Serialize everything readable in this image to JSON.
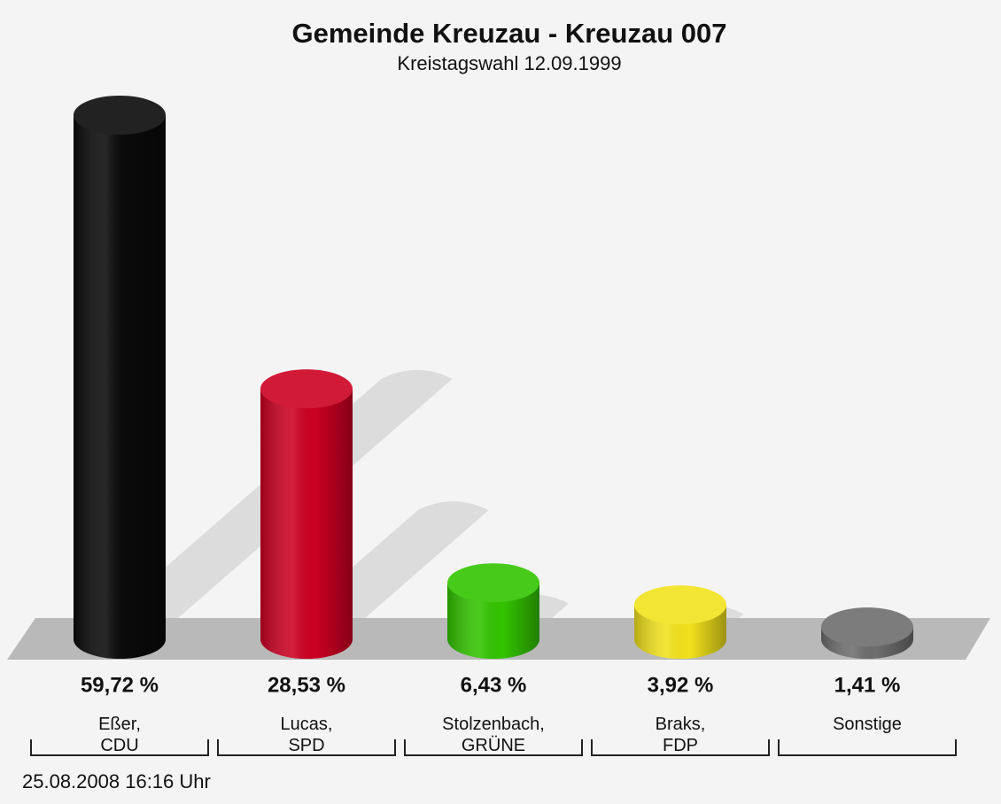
{
  "chart_data": {
    "type": "bar",
    "title": "Gemeinde Kreuzau - Kreuzau 007",
    "subtitle": "Kreistagswahl 12.09.1999",
    "categories": [
      "Eßer,\nCDU",
      "Lucas,\nSPD",
      "Stolzenbach,\nGRÜNE",
      "Braks,\nFDP",
      "Sonstige"
    ],
    "values": [
      59.72,
      28.53,
      6.43,
      3.92,
      1.41
    ],
    "value_labels": [
      "59,72 %",
      "28,53 %",
      "6,43 %",
      "3,92 %",
      "1,41 %"
    ],
    "colors": [
      "#0a0a0a",
      "#cc0022",
      "#33c400",
      "#f2e21c",
      "#6e6e6e"
    ],
    "footer": "25.08.2008 16:16 Uhr"
  }
}
